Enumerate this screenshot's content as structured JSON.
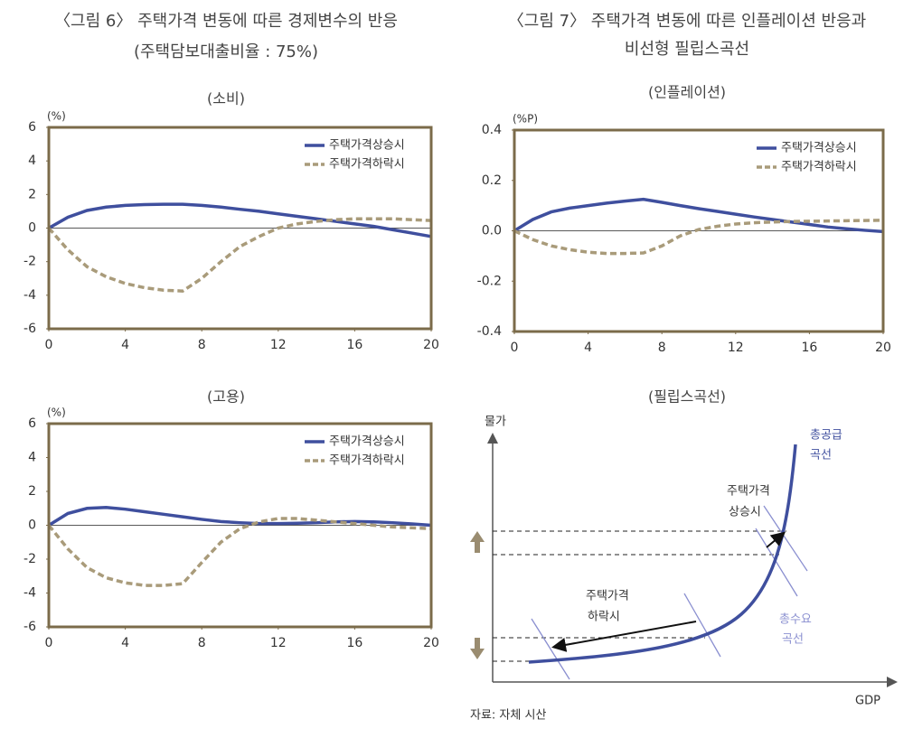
{
  "figures": [
    {
      "title": "〈그림 6〉 주택가격 변동에 따른 경제변수의 반응",
      "subtitle": "(주택담보대출비율 : 75%)"
    },
    {
      "title": "〈그림 7〉 주택가격 변동에 따른 인플레이션 반응과",
      "subtitle": "비선형 필립스곡선"
    }
  ],
  "chart_data": [
    {
      "type": "line",
      "title": "(소비)",
      "y_label": "(%)",
      "x": [
        0,
        1,
        2,
        3,
        4,
        5,
        6,
        7,
        8,
        9,
        10,
        11,
        12,
        13,
        14,
        15,
        16,
        17,
        18,
        19,
        20
      ],
      "xlim": [
        0,
        20
      ],
      "xticks": [
        0,
        4,
        8,
        12,
        16,
        20
      ],
      "ylim": [
        -6,
        6
      ],
      "yticks": [
        -6,
        -4,
        -2,
        0,
        2,
        4,
        6
      ],
      "legend": "upper right",
      "series": [
        {
          "name": "주택가격상승시",
          "color": "#3f4f9e",
          "dashed": false,
          "values": [
            0,
            0.65,
            1.05,
            1.25,
            1.35,
            1.4,
            1.42,
            1.42,
            1.35,
            1.25,
            1.12,
            1.0,
            0.85,
            0.7,
            0.55,
            0.4,
            0.25,
            0.1,
            -0.1,
            -0.3,
            -0.5
          ]
        },
        {
          "name": "주택가격하락시",
          "color": "#a99b7a",
          "dashed": true,
          "values": [
            0,
            -1.3,
            -2.3,
            -2.9,
            -3.3,
            -3.55,
            -3.7,
            -3.75,
            -3.0,
            -2.0,
            -1.1,
            -0.5,
            0.0,
            0.25,
            0.4,
            0.5,
            0.55,
            0.55,
            0.55,
            0.5,
            0.45
          ]
        }
      ]
    },
    {
      "type": "line",
      "title": "(인플레이션)",
      "y_label": "(%P)",
      "x": [
        0,
        1,
        2,
        3,
        4,
        5,
        6,
        7,
        8,
        9,
        10,
        11,
        12,
        13,
        14,
        15,
        16,
        17,
        18,
        19,
        20
      ],
      "xlim": [
        0,
        20
      ],
      "xticks": [
        0,
        4,
        8,
        12,
        16,
        20
      ],
      "ylim": [
        -0.4,
        0.4
      ],
      "yticks": [
        -0.4,
        -0.2,
        {
          "value": 0,
          "label": "0.0"
        },
        0.2,
        0.4
      ],
      "legend": "upper right",
      "series": [
        {
          "name": "주택가격상승시",
          "color": "#3f4f9e",
          "dashed": false,
          "values": [
            0,
            0.045,
            0.075,
            0.09,
            0.1,
            0.11,
            0.118,
            0.125,
            0.113,
            0.1,
            0.088,
            0.077,
            0.066,
            0.055,
            0.045,
            0.035,
            0.025,
            0.015,
            0.008,
            0.002,
            -0.003
          ]
        },
        {
          "name": "주택가격하락시",
          "color": "#a99b7a",
          "dashed": true,
          "values": [
            0,
            -0.035,
            -0.06,
            -0.075,
            -0.085,
            -0.09,
            -0.09,
            -0.088,
            -0.06,
            -0.02,
            0.005,
            0.018,
            0.027,
            0.032,
            0.035,
            0.037,
            0.038,
            0.039,
            0.04,
            0.041,
            0.042
          ]
        }
      ]
    },
    {
      "type": "line",
      "title": "(고용)",
      "y_label": "(%)",
      "x": [
        0,
        1,
        2,
        3,
        4,
        5,
        6,
        7,
        8,
        9,
        10,
        11,
        12,
        13,
        14,
        15,
        16,
        17,
        18,
        19,
        20
      ],
      "xlim": [
        0,
        20
      ],
      "xticks": [
        0,
        4,
        8,
        12,
        16,
        20
      ],
      "ylim": [
        -6,
        6
      ],
      "yticks": [
        -6,
        -4,
        -2,
        0,
        2,
        4,
        6
      ],
      "legend": "upper right",
      "series": [
        {
          "name": "주택가격상승시",
          "color": "#3f4f9e",
          "dashed": false,
          "values": [
            0,
            0.7,
            1.0,
            1.05,
            0.95,
            0.8,
            0.65,
            0.5,
            0.35,
            0.22,
            0.15,
            0.1,
            0.1,
            0.12,
            0.15,
            0.2,
            0.22,
            0.2,
            0.15,
            0.08,
            0
          ]
        },
        {
          "name": "주택가격하락시",
          "color": "#a99b7a",
          "dashed": true,
          "values": [
            0,
            -1.4,
            -2.5,
            -3.1,
            -3.4,
            -3.55,
            -3.55,
            -3.45,
            -2.2,
            -1.0,
            -0.2,
            0.2,
            0.4,
            0.4,
            0.3,
            0.2,
            0.1,
            0,
            -0.1,
            -0.15,
            -0.2
          ]
        }
      ]
    }
  ],
  "diagram": {
    "title": "(필립스곡선)",
    "y_axis": "물가",
    "x_axis": "GDP",
    "supply_label": [
      "총공급",
      "곡선"
    ],
    "demand_label": [
      "총수요",
      "곡선"
    ],
    "rise_label": [
      "주택가격",
      "상승시"
    ],
    "fall_label": [
      "주택가격",
      "하락시"
    ]
  },
  "source": "자료: 자체 시산"
}
